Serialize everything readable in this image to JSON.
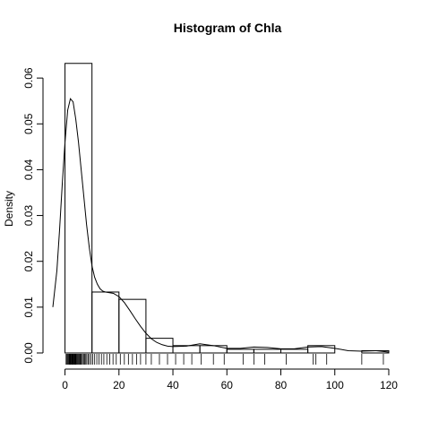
{
  "chart_data": {
    "type": "histogram",
    "title": "Histogram of  Chla",
    "xlabel": "",
    "ylabel": "Density",
    "xlim": [
      -4.5,
      122
    ],
    "ylim": [
      0,
      0.0655
    ],
    "x_ticks": [
      0,
      20,
      40,
      60,
      80,
      100,
      120
    ],
    "y_ticks": [
      0.0,
      0.01,
      0.02,
      0.03,
      0.04,
      0.05,
      0.06
    ],
    "y_tick_labels": [
      "0.00",
      "0.01",
      "0.02",
      "0.03",
      "0.04",
      "0.05",
      "0.06"
    ],
    "bins": [
      {
        "x0": 0,
        "x1": 10,
        "density": 0.0632
      },
      {
        "x0": 10,
        "x1": 20,
        "density": 0.0133
      },
      {
        "x0": 20,
        "x1": 30,
        "density": 0.0117
      },
      {
        "x0": 30,
        "x1": 40,
        "density": 0.0032
      },
      {
        "x0": 40,
        "x1": 50,
        "density": 0.0016
      },
      {
        "x0": 50,
        "x1": 60,
        "density": 0.0016
      },
      {
        "x0": 60,
        "x1": 70,
        "density": 0.0008
      },
      {
        "x0": 70,
        "x1": 80,
        "density": 0.0008
      },
      {
        "x0": 80,
        "x1": 90,
        "density": 0.0008
      },
      {
        "x0": 90,
        "x1": 100,
        "density": 0.0016
      },
      {
        "x0": 100,
        "x1": 110,
        "density": 0.0
      },
      {
        "x0": 110,
        "x1": 120,
        "density": 0.0005
      }
    ],
    "density_curve": {
      "x": [
        -4.5,
        -3,
        -2,
        -1,
        0,
        1,
        2,
        3,
        4,
        5,
        6,
        7,
        8,
        9,
        10,
        11,
        12,
        13,
        14,
        15,
        16,
        18,
        20,
        22,
        24,
        26,
        28,
        30,
        32,
        34,
        36,
        38,
        40,
        45,
        50,
        55,
        60,
        65,
        70,
        75,
        80,
        85,
        90,
        95,
        100,
        105,
        110,
        115,
        120
      ],
      "y": [
        0.01,
        0.018,
        0.027,
        0.037,
        0.046,
        0.053,
        0.0555,
        0.0548,
        0.051,
        0.046,
        0.04,
        0.034,
        0.028,
        0.023,
        0.019,
        0.0165,
        0.015,
        0.014,
        0.0135,
        0.0133,
        0.0132,
        0.013,
        0.0123,
        0.011,
        0.0093,
        0.0075,
        0.0058,
        0.0043,
        0.0031,
        0.0023,
        0.0018,
        0.0015,
        0.0014,
        0.0015,
        0.002,
        0.0016,
        0.001,
        0.001,
        0.0013,
        0.0012,
        0.0009,
        0.0009,
        0.0013,
        0.0014,
        0.001,
        0.0005,
        0.0004,
        0.0005,
        0.0002
      ]
    },
    "rug": [
      0.4,
      0.7,
      1.0,
      1.2,
      1.5,
      1.7,
      1.9,
      2.1,
      2.3,
      2.5,
      2.7,
      2.9,
      3.1,
      3.3,
      3.5,
      3.7,
      3.9,
      4.1,
      4.3,
      4.6,
      4.9,
      5.2,
      5.5,
      5.8,
      6.1,
      6.5,
      6.9,
      7.3,
      7.7,
      8.1,
      8.6,
      9.1,
      9.7,
      10.3,
      11.0,
      11.8,
      12.6,
      13.5,
      14.4,
      15.5,
      16.6,
      17.8,
      19.0,
      20.5,
      22.0,
      23.5,
      25.0,
      26.5,
      28.0,
      30.0,
      32.0,
      35.0,
      38.0,
      41.0,
      44.0,
      47.0,
      50.5,
      55.0,
      59.0,
      66.0,
      70.0,
      74.0,
      82.0,
      92.0,
      93.0,
      97.0,
      110.0,
      118.0
    ],
    "grid": false,
    "legend": "none"
  }
}
